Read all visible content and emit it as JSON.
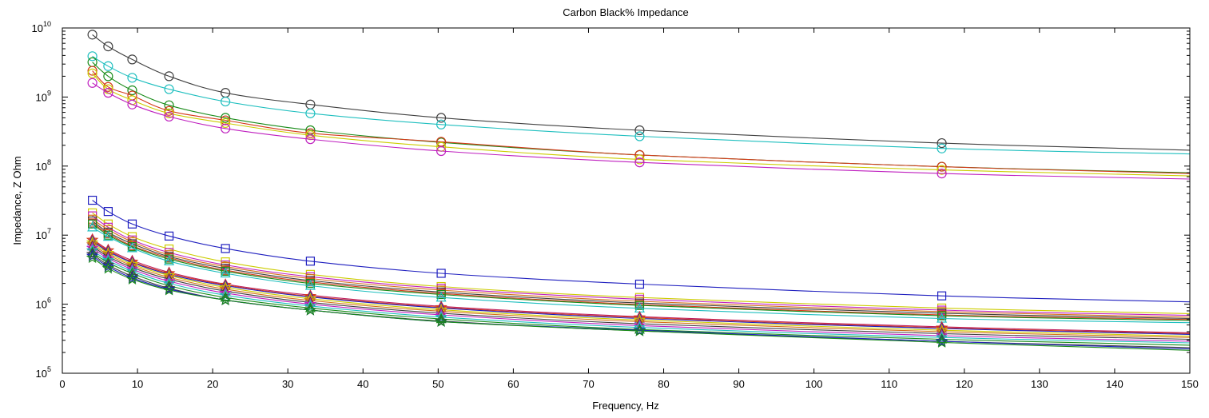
{
  "chart_data": {
    "type": "line",
    "title": "Carbon Black% Impedance",
    "xlabel": "Frequency, Hz",
    "ylabel": "Impedance, Z Ohm",
    "y_scale": "log",
    "xlim": [
      0,
      150
    ],
    "ylim": [
      100000,
      10000000000
    ],
    "x_ticks": [
      "0",
      "10",
      "20",
      "30",
      "40",
      "50",
      "60",
      "70",
      "80",
      "90",
      "100",
      "110",
      "120",
      "130",
      "140",
      "150"
    ],
    "y_ticks": [
      {
        "base": "10",
        "exp": "5"
      },
      {
        "base": "10",
        "exp": "6"
      },
      {
        "base": "10",
        "exp": "7"
      },
      {
        "base": "10",
        "exp": "8"
      },
      {
        "base": "10",
        "exp": "9"
      },
      {
        "base": "10",
        "exp": "10"
      }
    ],
    "grid": false,
    "x": [
      4,
      6.1,
      9.3,
      14.2,
      21.7,
      33,
      50.4,
      76.8,
      117,
      150
    ],
    "series": [
      {
        "color": "#404040",
        "marker": "o",
        "values": [
          8000000000,
          5400000000,
          3500000000,
          2000000000,
          1150000000,
          780000000,
          500000000,
          330000000,
          215000000,
          170000000
        ]
      },
      {
        "color": "#1fbfbf",
        "marker": "o",
        "values": [
          3900000000,
          2800000000,
          1900000000,
          1300000000,
          860000000,
          580000000,
          400000000,
          270000000,
          180000000,
          150000000
        ]
      },
      {
        "color": "#1a8c1a",
        "marker": "o",
        "values": [
          3200000000,
          2000000000,
          1250000000,
          760000000,
          500000000,
          330000000,
          220000000,
          145000000,
          98000000,
          80000000
        ]
      },
      {
        "color": "#d43a1a",
        "marker": "o",
        "values": [
          2400000000,
          1400000000,
          1050000000,
          630000000,
          460000000,
          300000000,
          225000000,
          145000000,
          98000000,
          78000000
        ]
      },
      {
        "color": "#cccc00",
        "marker": "o",
        "values": [
          2200000000,
          1300000000,
          900000000,
          580000000,
          420000000,
          280000000,
          190000000,
          125000000,
          88000000,
          72000000
        ]
      },
      {
        "color": "#bf1fbf",
        "marker": "o",
        "values": [
          1600000000,
          1150000000,
          780000000,
          520000000,
          350000000,
          245000000,
          165000000,
          113000000,
          78000000,
          65000000
        ]
      },
      {
        "color": "#1f1fbf",
        "marker": "s",
        "values": [
          32000000,
          22000000,
          14500000,
          9700000,
          6400000,
          4200000,
          2800000,
          1950000,
          1320000,
          1080000
        ]
      },
      {
        "color": "#cccc00",
        "marker": "s",
        "values": [
          21000000,
          14500000,
          9500000,
          6300000,
          4100000,
          2700000,
          1800000,
          1250000,
          880000,
          730000
        ]
      },
      {
        "color": "#bf1fbf",
        "marker": "s",
        "values": [
          19000000,
          13000000,
          8500000,
          5600000,
          3700000,
          2500000,
          1700000,
          1180000,
          820000,
          690000
        ]
      },
      {
        "color": "#d4701a",
        "marker": "s",
        "values": [
          17000000,
          12000000,
          8000000,
          5200000,
          3500000,
          2350000,
          1600000,
          1100000,
          780000,
          650000
        ]
      },
      {
        "color": "#404040",
        "marker": "s",
        "values": [
          16000000,
          11000000,
          7500000,
          4900000,
          3300000,
          2200000,
          1500000,
          1040000,
          740000,
          620000
        ]
      },
      {
        "color": "#d43a1a",
        "marker": "s",
        "values": [
          15000000,
          10500000,
          7000000,
          4700000,
          3100000,
          2100000,
          1430000,
          990000,
          700000,
          600000
        ]
      },
      {
        "color": "#1a8c1a",
        "marker": "s",
        "values": [
          14500000,
          10000000,
          6800000,
          4500000,
          3000000,
          2000000,
          1380000,
          960000,
          680000,
          580000
        ]
      },
      {
        "color": "#1fbfbf",
        "marker": "^",
        "values": [
          13000000,
          9500000,
          6500000,
          4200000,
          2800000,
          1850000,
          1250000,
          870000,
          620000,
          540000
        ]
      },
      {
        "color": "#bf1f5f",
        "marker": "^",
        "values": [
          8800000,
          6200000,
          4300000,
          2900000,
          1950000,
          1350000,
          930000,
          660000,
          470000,
          385000
        ]
      },
      {
        "color": "#d43a1a",
        "marker": "*",
        "values": [
          8500000,
          6000000,
          4100000,
          2800000,
          1900000,
          1300000,
          900000,
          640000,
          455000,
          375000
        ]
      },
      {
        "color": "#1f1fbf",
        "marker": "^",
        "values": [
          8200000,
          5800000,
          4000000,
          2700000,
          1850000,
          1270000,
          880000,
          620000,
          445000,
          365000
        ]
      },
      {
        "color": "#cccc00",
        "marker": "*",
        "values": [
          7800000,
          5500000,
          3800000,
          2600000,
          1750000,
          1200000,
          830000,
          590000,
          420000,
          345000
        ]
      },
      {
        "color": "#d4701a",
        "marker": "*",
        "values": [
          7300000,
          5200000,
          3600000,
          2450000,
          1650000,
          1130000,
          790000,
          560000,
          400000,
          330000
        ]
      },
      {
        "color": "#404040",
        "marker": "^",
        "values": [
          6900000,
          4900000,
          3400000,
          2300000,
          1550000,
          1060000,
          740000,
          520000,
          375000,
          310000
        ]
      },
      {
        "color": "#bf1fbf",
        "marker": "*",
        "values": [
          6500000,
          4600000,
          3200000,
          2150000,
          1450000,
          1000000,
          700000,
          490000,
          350000,
          290000
        ]
      },
      {
        "color": "#1fbfbf",
        "marker": "*",
        "values": [
          6000000,
          4300000,
          3000000,
          2000000,
          1350000,
          940000,
          650000,
          460000,
          330000,
          275000
        ]
      },
      {
        "color": "#1a8c1a",
        "marker": "^",
        "values": [
          5600000,
          4000000,
          2800000,
          1850000,
          1250000,
          880000,
          610000,
          430000,
          310000,
          255000
        ]
      },
      {
        "color": "#404040",
        "marker": "*",
        "values": [
          5300000,
          3700000,
          2550000,
          1700000,
          1150000,
          820000,
          570000,
          410000,
          290000,
          235000
        ]
      },
      {
        "color": "#1f1fbf",
        "marker": "*",
        "values": [
          5000000,
          3500000,
          2400000,
          1650000,
          1150000,
          820000,
          560000,
          420000,
          290000,
          225000
        ]
      },
      {
        "color": "#1a8c1a",
        "marker": "*",
        "values": [
          4700000,
          3300000,
          2300000,
          1600000,
          1150000,
          820000,
          560000,
          410000,
          280000,
          215000
        ]
      }
    ]
  }
}
